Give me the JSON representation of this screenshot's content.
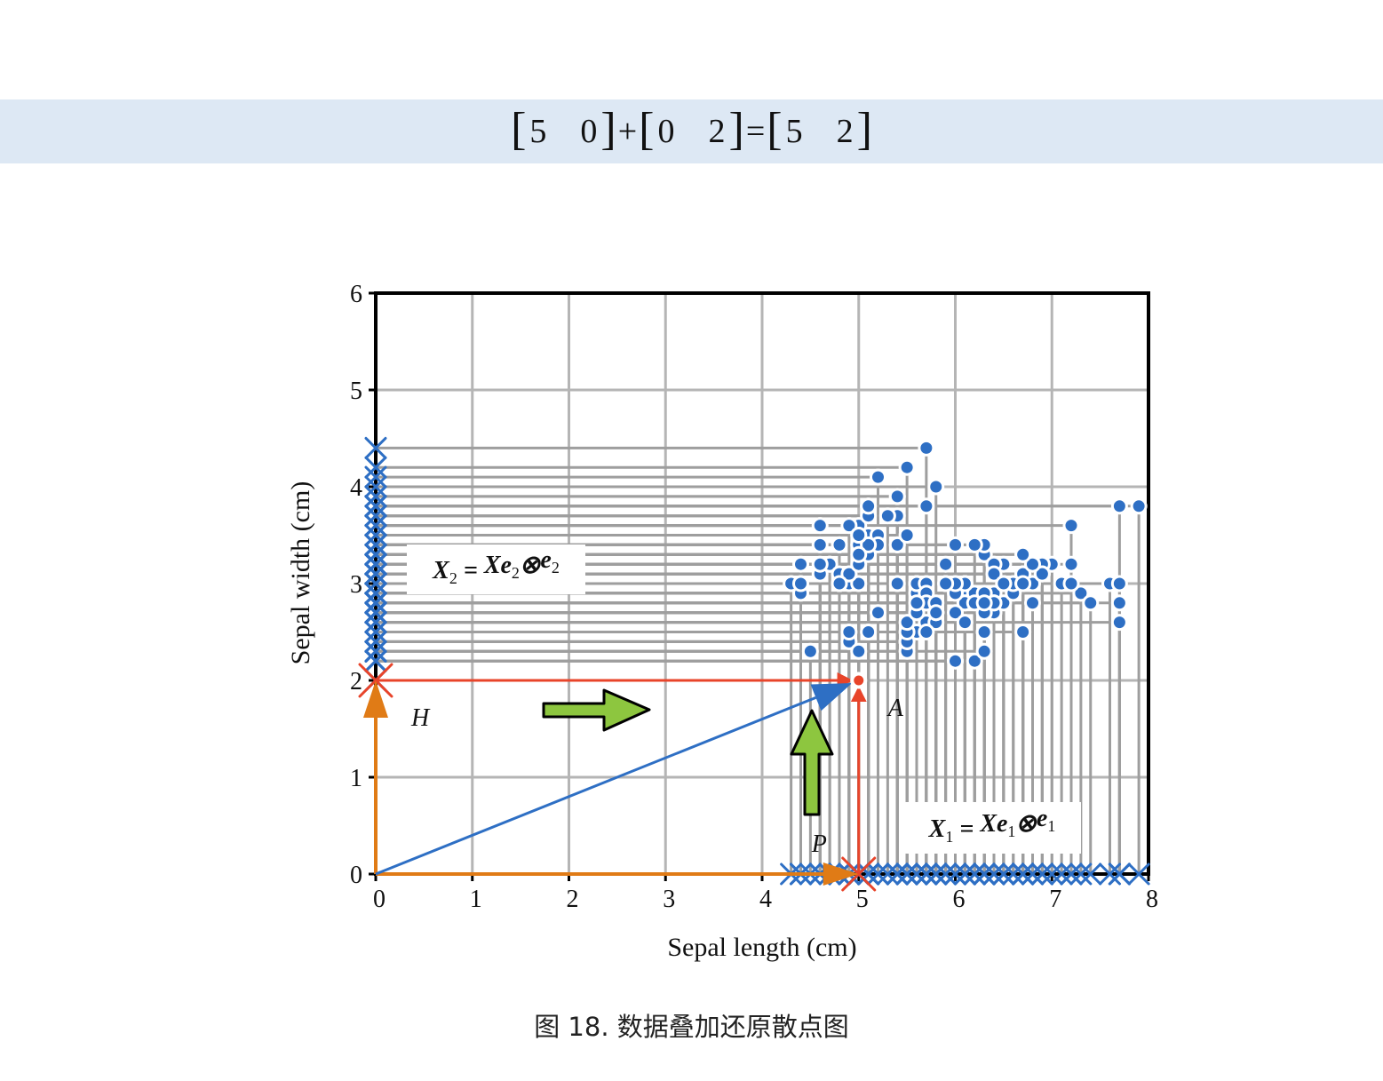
{
  "equation": {
    "lhs1": [
      "5",
      "0"
    ],
    "op1": "+",
    "lhs2": [
      "0",
      "2"
    ],
    "op2": "=",
    "rhs": [
      "5",
      "2"
    ]
  },
  "chart_data": {
    "type": "scatter",
    "xlabel": "Sepal length (cm)",
    "ylabel": "Sepal width (cm)",
    "xlim": [
      0,
      8
    ],
    "ylim": [
      0,
      6
    ],
    "xticks": [
      "0",
      "1",
      "2",
      "3",
      "4",
      "5",
      "6",
      "7",
      "8"
    ],
    "yticks": [
      "0",
      "1",
      "2",
      "3",
      "4",
      "5",
      "6"
    ],
    "grid": true,
    "colors": {
      "points": "#2e6fc4",
      "highlight": "#e8442a",
      "orange": "#e07b16",
      "projection_lines": "#9e9e9e",
      "green_arrow": "#8dc63f"
    },
    "points": [
      [
        5.1,
        3.5
      ],
      [
        4.9,
        3.0
      ],
      [
        4.7,
        3.2
      ],
      [
        4.6,
        3.1
      ],
      [
        5.0,
        3.6
      ],
      [
        5.4,
        3.9
      ],
      [
        4.6,
        3.4
      ],
      [
        5.0,
        3.4
      ],
      [
        4.4,
        2.9
      ],
      [
        4.9,
        3.1
      ],
      [
        5.4,
        3.7
      ],
      [
        4.8,
        3.4
      ],
      [
        4.8,
        3.0
      ],
      [
        4.3,
        3.0
      ],
      [
        5.8,
        4.0
      ],
      [
        5.7,
        4.4
      ],
      [
        5.4,
        3.9
      ],
      [
        5.1,
        3.5
      ],
      [
        5.7,
        3.8
      ],
      [
        5.1,
        3.8
      ],
      [
        5.4,
        3.4
      ],
      [
        5.1,
        3.7
      ],
      [
        4.6,
        3.6
      ],
      [
        5.1,
        3.3
      ],
      [
        4.8,
        3.4
      ],
      [
        5.0,
        3.0
      ],
      [
        5.0,
        3.4
      ],
      [
        5.2,
        3.5
      ],
      [
        5.2,
        3.4
      ],
      [
        4.7,
        3.2
      ],
      [
        4.8,
        3.1
      ],
      [
        5.4,
        3.4
      ],
      [
        5.2,
        4.1
      ],
      [
        5.5,
        4.2
      ],
      [
        4.9,
        3.1
      ],
      [
        5.0,
        3.2
      ],
      [
        5.5,
        3.5
      ],
      [
        4.9,
        3.6
      ],
      [
        4.4,
        3.0
      ],
      [
        5.1,
        3.4
      ],
      [
        5.0,
        3.5
      ],
      [
        4.5,
        2.3
      ],
      [
        4.4,
        3.2
      ],
      [
        5.0,
        3.5
      ],
      [
        5.1,
        3.8
      ],
      [
        4.8,
        3.0
      ],
      [
        5.1,
        3.8
      ],
      [
        4.6,
        3.2
      ],
      [
        5.3,
        3.7
      ],
      [
        5.0,
        3.3
      ],
      [
        7.0,
        3.2
      ],
      [
        6.4,
        3.2
      ],
      [
        6.9,
        3.1
      ],
      [
        5.5,
        2.3
      ],
      [
        6.5,
        2.8
      ],
      [
        5.7,
        2.8
      ],
      [
        6.3,
        3.3
      ],
      [
        4.9,
        2.4
      ],
      [
        6.6,
        2.9
      ],
      [
        5.2,
        2.7
      ],
      [
        5.0,
        2.0
      ],
      [
        5.9,
        3.0
      ],
      [
        6.0,
        2.2
      ],
      [
        6.1,
        2.9
      ],
      [
        5.6,
        2.9
      ],
      [
        6.7,
        3.1
      ],
      [
        5.6,
        3.0
      ],
      [
        5.8,
        2.7
      ],
      [
        6.2,
        2.2
      ],
      [
        5.6,
        2.5
      ],
      [
        5.9,
        3.2
      ],
      [
        6.1,
        2.8
      ],
      [
        6.3,
        2.5
      ],
      [
        6.1,
        2.8
      ],
      [
        6.4,
        2.9
      ],
      [
        6.6,
        3.0
      ],
      [
        6.8,
        2.8
      ],
      [
        6.7,
        3.0
      ],
      [
        6.0,
        2.9
      ],
      [
        5.7,
        2.6
      ],
      [
        5.5,
        2.4
      ],
      [
        5.5,
        2.4
      ],
      [
        5.8,
        2.7
      ],
      [
        6.0,
        2.7
      ],
      [
        5.4,
        3.0
      ],
      [
        6.0,
        3.4
      ],
      [
        6.7,
        3.1
      ],
      [
        6.3,
        2.3
      ],
      [
        5.6,
        3.0
      ],
      [
        5.5,
        2.5
      ],
      [
        5.5,
        2.6
      ],
      [
        6.1,
        3.0
      ],
      [
        5.8,
        2.6
      ],
      [
        5.0,
        2.3
      ],
      [
        5.6,
        2.7
      ],
      [
        5.7,
        3.0
      ],
      [
        5.7,
        2.9
      ],
      [
        6.2,
        2.9
      ],
      [
        5.1,
        2.5
      ],
      [
        5.7,
        2.8
      ],
      [
        6.3,
        3.3
      ],
      [
        5.8,
        2.7
      ],
      [
        7.1,
        3.0
      ],
      [
        6.3,
        2.9
      ],
      [
        6.5,
        3.0
      ],
      [
        7.6,
        3.0
      ],
      [
        4.9,
        2.5
      ],
      [
        7.3,
        2.9
      ],
      [
        6.7,
        2.5
      ],
      [
        7.2,
        3.6
      ],
      [
        6.5,
        3.2
      ],
      [
        6.4,
        2.7
      ],
      [
        6.8,
        3.0
      ],
      [
        5.7,
        2.5
      ],
      [
        5.8,
        2.8
      ],
      [
        6.4,
        3.2
      ],
      [
        6.5,
        3.0
      ],
      [
        7.7,
        3.8
      ],
      [
        7.7,
        2.6
      ],
      [
        6.0,
        2.2
      ],
      [
        6.9,
        3.2
      ],
      [
        5.6,
        2.8
      ],
      [
        7.7,
        2.8
      ],
      [
        6.3,
        2.7
      ],
      [
        6.7,
        3.3
      ],
      [
        7.2,
        3.2
      ],
      [
        6.2,
        2.8
      ],
      [
        6.1,
        3.0
      ],
      [
        6.4,
        2.8
      ],
      [
        7.2,
        3.0
      ],
      [
        7.4,
        2.8
      ],
      [
        7.9,
        3.8
      ],
      [
        6.4,
        2.8
      ],
      [
        6.3,
        2.8
      ],
      [
        6.1,
        2.6
      ],
      [
        7.7,
        3.0
      ],
      [
        6.3,
        3.4
      ],
      [
        6.4,
        3.1
      ],
      [
        6.0,
        3.0
      ],
      [
        6.9,
        3.1
      ],
      [
        6.7,
        3.1
      ],
      [
        6.9,
        3.1
      ],
      [
        5.8,
        2.7
      ],
      [
        6.8,
        3.2
      ],
      [
        6.7,
        3.3
      ],
      [
        6.7,
        3.0
      ],
      [
        6.3,
        2.5
      ],
      [
        6.5,
        3.0
      ],
      [
        6.2,
        3.4
      ],
      [
        5.9,
        3.0
      ]
    ],
    "highlight_point": {
      "label": "A",
      "x": 5,
      "y": 2
    },
    "projection_x": {
      "label": "P",
      "x": 5,
      "y": 0
    },
    "projection_y": {
      "label": "H",
      "x": 0,
      "y": 2
    },
    "box_x1": {
      "bold_x": "X",
      "sub_x": "1",
      "eq": " = ",
      "bold_xe": "Xe",
      "sub_e": "1",
      "otimes": "⊗",
      "bold_e": "e",
      "sub_e2": "1"
    },
    "box_x2": {
      "bold_x": "X",
      "sub_x": "2",
      "eq": " = ",
      "bold_xe": "Xe",
      "sub_e": "2",
      "otimes": "⊗",
      "bold_e": "e",
      "sub_e2": "2"
    }
  },
  "caption": "图 18. 数据叠加还原散点图"
}
